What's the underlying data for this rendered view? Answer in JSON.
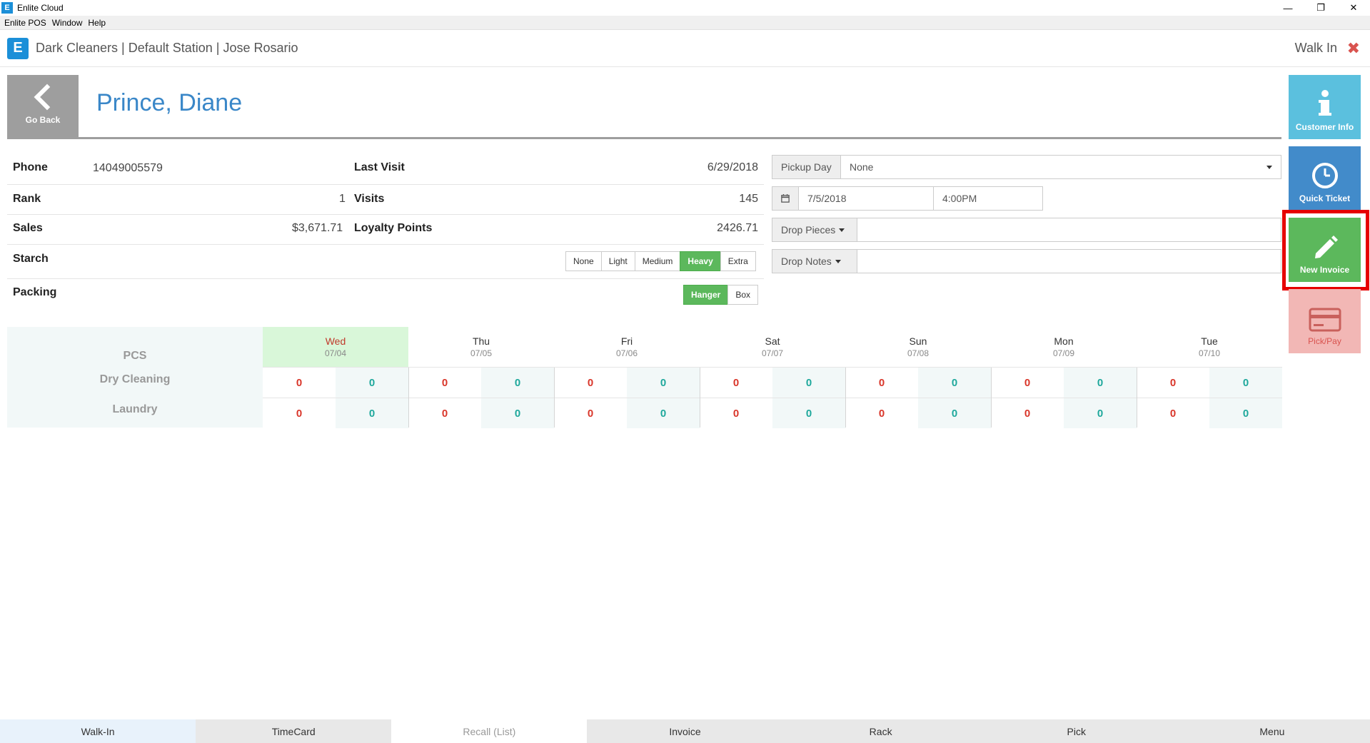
{
  "window": {
    "title": "Enlite Cloud",
    "icon": "enlite-e-icon",
    "minimize": "—",
    "restore": "❐",
    "close": "✕"
  },
  "menu": [
    "Enlite POS",
    "Window",
    "Help"
  ],
  "header": {
    "text": "Dark Cleaners | Default Station | Jose Rosario",
    "mode": "Walk In",
    "close_glyph": "✖"
  },
  "customer": {
    "go_back_label": "Go Back",
    "name": "Prince, Diane"
  },
  "info": {
    "phone_label": "Phone",
    "phone": "14049005579",
    "last_visit_label": "Last Visit",
    "last_visit": "6/29/2018",
    "rank_label": "Rank",
    "rank": "1",
    "visits_label": "Visits",
    "visits": "145",
    "sales_label": "Sales",
    "sales": "$3,671.71",
    "loyalty_label": "Loyalty Points",
    "loyalty": "2426.71",
    "starch_label": "Starch",
    "starch_options": [
      "None",
      "Light",
      "Medium",
      "Heavy",
      "Extra"
    ],
    "starch_selected": "Heavy",
    "packing_label": "Packing",
    "packing_options": [
      "Hanger",
      "Box"
    ],
    "packing_selected": "Hanger"
  },
  "form": {
    "pickup_day_label": "Pickup Day",
    "pickup_day_value": "None",
    "date": "7/5/2018",
    "time": "4:00PM",
    "drop_pieces_label": "Drop Pieces",
    "drop_notes_label": "Drop Notes"
  },
  "schedule": {
    "row_labels": [
      "PCS",
      "Dry Cleaning",
      "Laundry"
    ],
    "days": [
      {
        "name": "Wed",
        "date": "07/04",
        "today": true,
        "dry": [
          "0",
          "0"
        ],
        "laundry": [
          "0",
          "0"
        ]
      },
      {
        "name": "Thu",
        "date": "07/05",
        "dry": [
          "0",
          "0"
        ],
        "laundry": [
          "0",
          "0"
        ]
      },
      {
        "name": "Fri",
        "date": "07/06",
        "dry": [
          "0",
          "0"
        ],
        "laundry": [
          "0",
          "0"
        ]
      },
      {
        "name": "Sat",
        "date": "07/07",
        "dry": [
          "0",
          "0"
        ],
        "laundry": [
          "0",
          "0"
        ]
      },
      {
        "name": "Sun",
        "date": "07/08",
        "dry": [
          "0",
          "0"
        ],
        "laundry": [
          "0",
          "0"
        ]
      },
      {
        "name": "Mon",
        "date": "07/09",
        "dry": [
          "0",
          "0"
        ],
        "laundry": [
          "0",
          "0"
        ]
      },
      {
        "name": "Tue",
        "date": "07/10",
        "dry": [
          "0",
          "0"
        ],
        "laundry": [
          "0",
          "0"
        ]
      }
    ]
  },
  "actions": {
    "customer_info": {
      "label": "Customer Info",
      "icon": "info-icon",
      "color": "#5bc0de"
    },
    "quick_ticket": {
      "label": "Quick Ticket",
      "icon": "clock-icon",
      "color": "#428bca"
    },
    "new_invoice": {
      "label": "New Invoice",
      "icon": "pencil-icon",
      "color": "#5cb85c",
      "highlighted": true
    },
    "pick_pay": {
      "label": "Pick/Pay",
      "icon": "credit-card-icon",
      "color": "#f2b7b5"
    }
  },
  "tabs": [
    "Walk-In",
    "TimeCard",
    "Recall (List)",
    "Invoice",
    "Rack",
    "Pick",
    "Menu"
  ],
  "colors": {
    "accent": "#3a87c8",
    "success": "#5cb85c",
    "danger": "#d9534f",
    "teal": "#1fa89c"
  }
}
